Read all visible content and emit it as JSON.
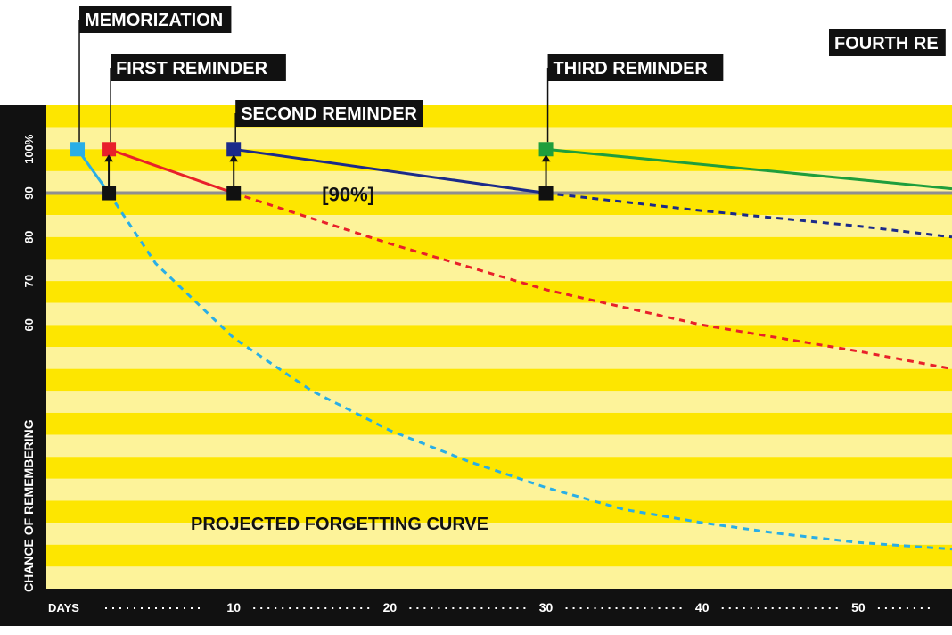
{
  "chart_data": {
    "type": "line",
    "ylabel": "CHANCE OF REMEMBERING",
    "xlabel": "DAYS",
    "x_ticks": [
      10,
      20,
      30,
      40,
      50
    ],
    "y_ticks": [
      "100%",
      "90",
      "80",
      "70",
      "60"
    ],
    "xlim": [
      -2,
      56
    ],
    "ylim": [
      0,
      110
    ],
    "threshold": {
      "y": 90,
      "label": "[90%]"
    },
    "events": [
      {
        "name": "MEMORIZATION",
        "x": 0,
        "y": 100,
        "color": "#29aee6"
      },
      {
        "name": "FIRST REMINDER",
        "x": 2,
        "y": 100,
        "color": "#e8202a"
      },
      {
        "name": "SECOND REMINDER",
        "x": 10,
        "y": 100,
        "color": "#1b2a8a"
      },
      {
        "name": "THIRD REMINDER",
        "x": 30,
        "y": 100,
        "color": "#1e9e3c"
      },
      {
        "name": "FOURTH RE",
        "x": 58,
        "y": 100,
        "color": "#000000"
      }
    ],
    "series": [
      {
        "color": "#29aee6",
        "solid": [
          [
            0,
            100
          ],
          [
            2,
            90
          ]
        ],
        "dashed": [
          [
            2,
            90
          ],
          [
            5,
            74
          ],
          [
            10,
            57
          ],
          [
            15,
            45
          ],
          [
            20,
            36
          ],
          [
            25,
            29
          ],
          [
            30,
            23
          ],
          [
            35,
            18
          ],
          [
            40,
            15
          ],
          [
            45,
            12.5
          ],
          [
            50,
            10.5
          ],
          [
            56,
            9
          ]
        ]
      },
      {
        "color": "#e8202a",
        "solid": [
          [
            2,
            100
          ],
          [
            10,
            90
          ]
        ],
        "dashed": [
          [
            10,
            90
          ],
          [
            20,
            78.5
          ],
          [
            30,
            68
          ],
          [
            40,
            60
          ],
          [
            50,
            54
          ],
          [
            56,
            50
          ]
        ]
      },
      {
        "color": "#1b2a8a",
        "solid": [
          [
            10,
            100
          ],
          [
            30,
            90
          ]
        ],
        "dashed": [
          [
            30,
            90
          ],
          [
            40,
            86
          ],
          [
            50,
            82.5
          ],
          [
            56,
            80
          ]
        ]
      },
      {
        "color": "#1e9e3c",
        "solid": [
          [
            30,
            100
          ],
          [
            56,
            91
          ]
        ],
        "dashed": []
      }
    ],
    "reminder_points": [
      {
        "x": 2,
        "y": 90
      },
      {
        "x": 10,
        "y": 90
      },
      {
        "x": 30,
        "y": 90
      }
    ],
    "annotation": "PROJECTED FORGETTING CURVE",
    "colors": {
      "band_dark": "#fde600",
      "band_light": "#fdf39a",
      "axis_bg": "#111111",
      "threshold_line": "#8f8f8f"
    }
  }
}
